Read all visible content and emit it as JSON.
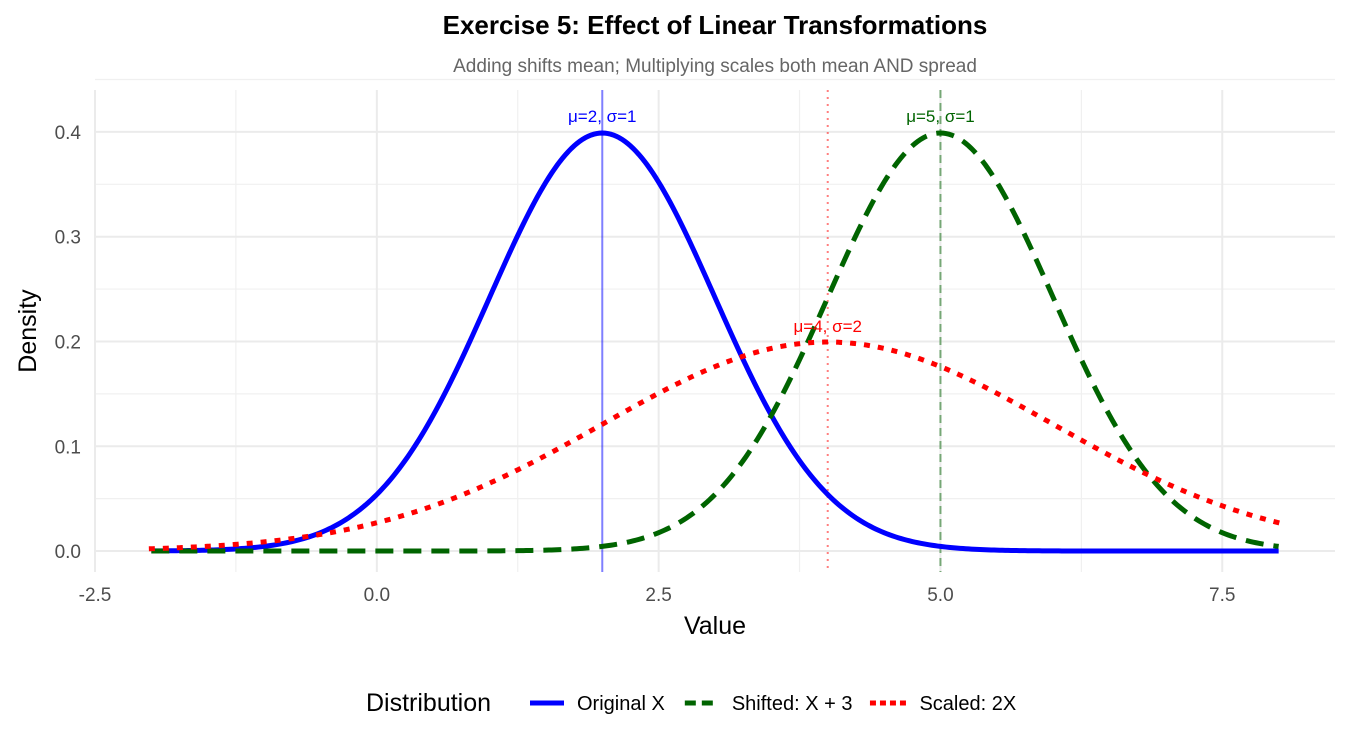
{
  "chart_data": {
    "type": "line",
    "title": "Exercise 5: Effect of Linear Transformations",
    "subtitle": "Adding shifts mean; Multiplying scales both mean AND spread",
    "xlabel": "Value",
    "ylabel": "Density",
    "xlim": [
      -2.5,
      8.5
    ],
    "ylim": [
      -0.02,
      0.44
    ],
    "x_ticks": [
      -2.5,
      0.0,
      2.5,
      5.0,
      7.5
    ],
    "x_tick_labels": [
      "-2.5",
      "0.0",
      "2.5",
      "5.0",
      "7.5"
    ],
    "y_ticks": [
      0.0,
      0.1,
      0.2,
      0.3,
      0.4
    ],
    "y_tick_labels": [
      "0.0",
      "0.1",
      "0.2",
      "0.3",
      "0.4"
    ],
    "grid": true,
    "x_range": [
      -2,
      8
    ],
    "legend": {
      "title": "Distribution",
      "position": "bottom"
    },
    "series": [
      {
        "name": "Original X",
        "distribution": "normal",
        "mean": 2,
        "sd": 1,
        "color": "#0000ff",
        "linestyle": "solid",
        "annotation": "μ=2, σ=1"
      },
      {
        "name": "Shifted: X + 3",
        "distribution": "normal",
        "mean": 5,
        "sd": 1,
        "color": "#006400",
        "linestyle": "dashed",
        "annotation": "μ=5, σ=1"
      },
      {
        "name": "Scaled: 2X",
        "distribution": "normal",
        "mean": 4,
        "sd": 2,
        "color": "#ff0000",
        "linestyle": "dotted",
        "annotation": "μ=4, σ=2"
      }
    ],
    "annotation_y": [
      0.415,
      0.415,
      0.215
    ]
  }
}
